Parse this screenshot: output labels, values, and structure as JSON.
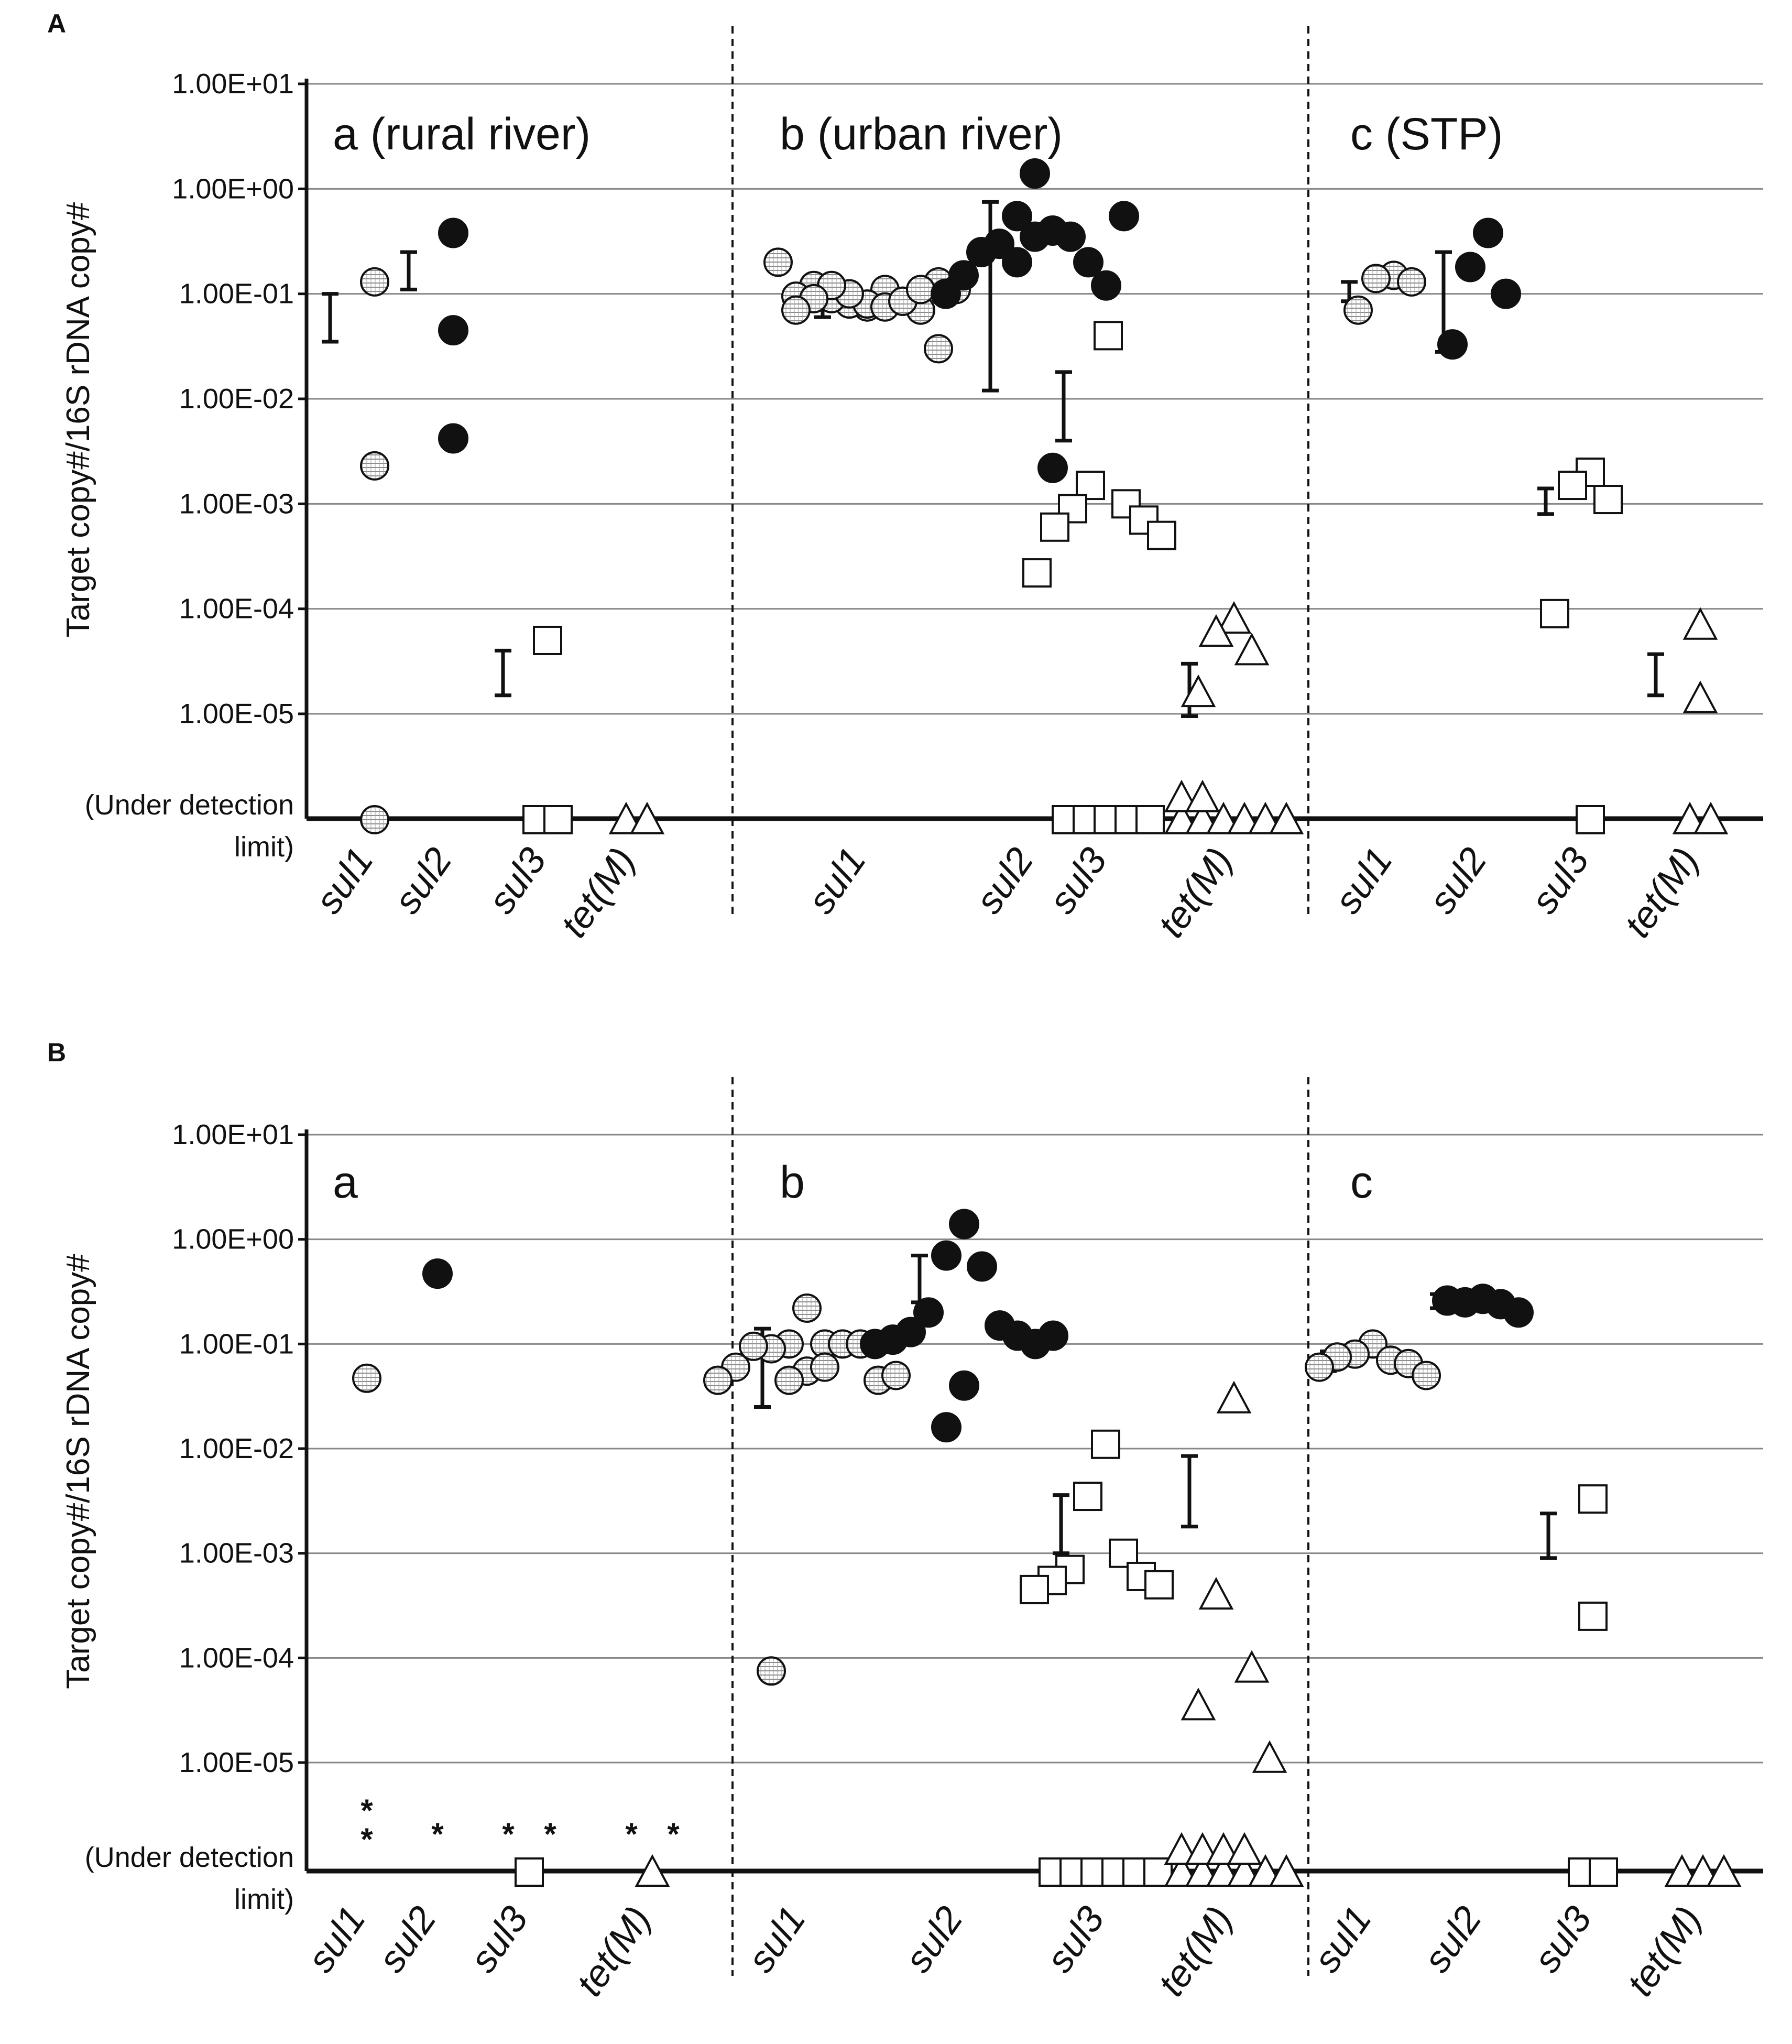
{
  "figure": {
    "panel_A_label": "A",
    "panel_B_label": "B"
  },
  "chart_data": [
    {
      "type": "scatter",
      "panel": "A",
      "ylabel": "Target copy#/16S rDNA copy#",
      "yscale": "log",
      "ylim": [
        1e-06,
        10
      ],
      "yticks": [
        "1.00E+01",
        "1.00E+00",
        "1.00E-01",
        "1.00E-02",
        "1.00E-03",
        "1.00E-04",
        "1.00E-05"
      ],
      "udl_label_line1": "(Under detection",
      "udl_label_line2": "limit)",
      "subpanels": [
        {
          "title": "a  (rural river)",
          "categories": [
            {
              "label": "sul1",
              "marker": "circle-hatch",
              "values": [
                0.13,
                0.0023
              ],
              "udl_count": 1,
              "range": [
                0.035,
                0.1
              ]
            },
            {
              "label": "sul2",
              "marker": "circle-filled",
              "values": [
                0.38,
                0.045,
                0.0042
              ],
              "udl_count": 0,
              "range": [
                0.11,
                0.25
              ]
            },
            {
              "label": "sul3",
              "marker": "square",
              "values": [
                5e-05
              ],
              "udl_count": 2,
              "range": [
                1.5e-05,
                4e-05
              ]
            },
            {
              "label": "tet(M)",
              "marker": "triangle",
              "values": [],
              "udl_count": 2,
              "range": null
            }
          ]
        },
        {
          "title": "b  (urban river)",
          "categories": [
            {
              "label": "sul1",
              "marker": "circle-hatch",
              "values": [
                0.075,
                0.08,
                0.11,
                0.09,
                0.085,
                0.12,
                0.07,
                0.095,
                0.13,
                0.2,
                0.11,
                0.08,
                0.1,
                0.075,
                0.12,
                0.085,
                0.09,
                0.11,
                0.07,
                0.03
              ],
              "udl_count": 0,
              "range": [
                0.06,
                0.13
              ]
            },
            {
              "label": "sul2",
              "marker": "circle-filled",
              "values": [
                1.4,
                0.55,
                0.4,
                0.3,
                0.35,
                0.25,
                0.2,
                0.15,
                0.12,
                0.1,
                0.55,
                0.35,
                0.2,
                0.0022
              ],
              "udl_count": 0,
              "range": [
                0.012,
                0.75
              ]
            },
            {
              "label": "sul3",
              "marker": "square",
              "values": [
                0.04,
                0.0015,
                0.001,
                0.0009,
                0.0007,
                0.0006,
                0.0005,
                0.00022
              ],
              "udl_count": 5,
              "range": [
                0.004,
                0.018
              ]
            },
            {
              "label": "tet(M)",
              "marker": "triangle",
              "values": [
                8e-05,
                6e-05,
                4e-05,
                1.6e-05
              ],
              "udl_count": 8,
              "range": [
                9.5e-06,
                3e-05
              ]
            }
          ]
        },
        {
          "title": "c  (STP)",
          "categories": [
            {
              "label": "sul1",
              "marker": "circle-hatch",
              "values": [
                0.15,
                0.14,
                0.13,
                0.07
              ],
              "udl_count": 0,
              "range": [
                0.085,
                0.13
              ]
            },
            {
              "label": "sul2",
              "marker": "circle-filled",
              "values": [
                0.38,
                0.18,
                0.1,
                0.033
              ],
              "udl_count": 0,
              "range": [
                0.028,
                0.25
              ]
            },
            {
              "label": "sul3",
              "marker": "square",
              "values": [
                0.002,
                0.0015,
                0.0011,
                9e-05
              ],
              "udl_count": 1,
              "range": [
                0.0008,
                0.0014
              ]
            },
            {
              "label": "tet(M)",
              "marker": "triangle",
              "values": [
                7e-05,
                1.4e-05
              ],
              "udl_count": 2,
              "range": [
                1.5e-05,
                3.7e-05
              ]
            }
          ]
        }
      ]
    },
    {
      "type": "scatter",
      "panel": "B",
      "ylabel": "Target copy#/16S rDNA copy#",
      "yscale": "log",
      "ylim": [
        1e-06,
        10
      ],
      "yticks": [
        "1.00E+01",
        "1.00E+00",
        "1.00E-01",
        "1.00E-02",
        "1.00E-03",
        "1.00E-04",
        "1.00E-05"
      ],
      "udl_label_line1": "(Under detection",
      "udl_label_line2": "limit)",
      "subpanels": [
        {
          "title": "a",
          "categories": [
            {
              "label": "sul1",
              "marker": "circle-hatch",
              "values": [
                0.047
              ],
              "udl_count": 0,
              "range": null,
              "asterisks": 2
            },
            {
              "label": "sul2",
              "marker": "circle-filled",
              "values": [
                0.47
              ],
              "udl_count": 0,
              "range": null,
              "asterisks": 1
            },
            {
              "label": "sul3",
              "marker": "square",
              "values": [],
              "udl_count": 1,
              "range": null,
              "asterisks": 2
            },
            {
              "label": "tet(M)",
              "marker": "triangle",
              "values": [],
              "udl_count": 1,
              "range": null,
              "asterisks": 2
            }
          ]
        },
        {
          "title": "b",
          "categories": [
            {
              "label": "sul1",
              "marker": "circle-hatch",
              "values": [
                0.22,
                0.1,
                0.1,
                0.09,
                0.1,
                0.095,
                0.1,
                0.06,
                0.045,
                0.045,
                0.05,
                0.055,
                0.045,
                0.06,
                7.5e-05
              ],
              "udl_count": 0,
              "range": [
                0.025,
                0.14
              ]
            },
            {
              "label": "sul2",
              "marker": "circle-filled",
              "values": [
                1.4,
                0.7,
                0.55,
                0.2,
                0.15,
                0.13,
                0.12,
                0.11,
                0.1,
                0.1,
                0.12,
                0.04,
                0.016
              ],
              "udl_count": 0,
              "range": [
                0.25,
                0.7
              ]
            },
            {
              "label": "sul3",
              "marker": "square",
              "values": [
                0.011,
                0.0035,
                0.001,
                0.0007,
                0.0006,
                0.00055,
                0.0005,
                0.00045
              ],
              "udl_count": 6,
              "range": [
                0.001,
                0.0036
              ]
            },
            {
              "label": "tet(M)",
              "marker": "triangle",
              "values": [
                0.03,
                0.0004,
                8e-05,
                3.5e-05,
                1.1e-05
              ],
              "udl_count": 10,
              "range": [
                0.0018,
                0.0085
              ]
            }
          ]
        },
        {
          "title": "c",
          "categories": [
            {
              "label": "sul1",
              "marker": "circle-hatch",
              "values": [
                0.1,
                0.08,
                0.07,
                0.075,
                0.065,
                0.06,
                0.05
              ],
              "udl_count": 0,
              "range": [
                0.055,
                0.085
              ]
            },
            {
              "label": "sul2",
              "marker": "circle-filled",
              "values": [
                0.27,
                0.25,
                0.24,
                0.26,
                0.2
              ],
              "udl_count": 0,
              "range": [
                0.22,
                0.3
              ]
            },
            {
              "label": "sul3",
              "marker": "square",
              "values": [
                0.0033,
                0.00025
              ],
              "udl_count": 2,
              "range": [
                0.0009,
                0.0024
              ]
            },
            {
              "label": "tet(M)",
              "marker": "triangle",
              "values": [],
              "udl_count": 3,
              "range": null
            }
          ]
        }
      ]
    }
  ]
}
